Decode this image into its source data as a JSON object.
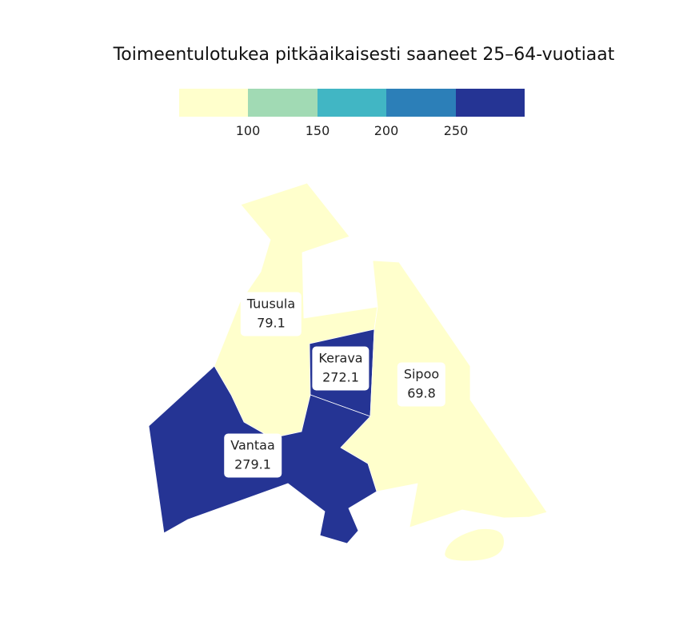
{
  "title": "Toimeentulotukea pitkäaikaisesti saaneet 25–64-vuotiaat",
  "legend": {
    "colors": [
      "#ffffcc",
      "#a1dab4",
      "#41b6c4",
      "#2c7fb8",
      "#253494"
    ],
    "ticks": [
      "100",
      "150",
      "200",
      "250"
    ],
    "breaks": [
      100,
      150,
      200,
      250
    ]
  },
  "regions": [
    {
      "name": "Tuusula",
      "value": "79.1",
      "color": "#ffffcc"
    },
    {
      "name": "Kerava",
      "value": "272.1",
      "color": "#253494"
    },
    {
      "name": "Sipoo",
      "value": "69.8",
      "color": "#ffffcc"
    },
    {
      "name": "Vantaa",
      "value": "279.1",
      "color": "#253494"
    }
  ]
}
